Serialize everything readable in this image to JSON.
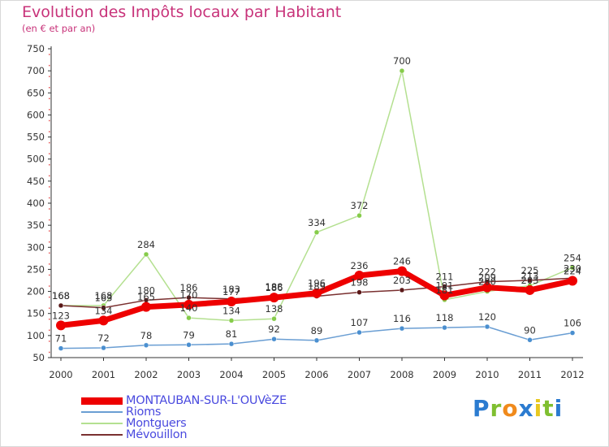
{
  "header": {
    "title": "Evolution des Impôts locaux par Habitant",
    "subtitle": "(en € et par an)"
  },
  "brand": {
    "letters": [
      "P",
      "r",
      "o",
      "x",
      "i",
      "t",
      "i"
    ],
    "colors": [
      "#2b7bd0",
      "#7fbf30",
      "#f08a1c",
      "#2b7bd0",
      "#e8c820",
      "#7fbf30",
      "#2b7bd0"
    ]
  },
  "chart_data": {
    "type": "line",
    "title": "Evolution des Impôts locaux par Habitant",
    "subtitle": "(en € et par an)",
    "xlabel": "",
    "ylabel": "",
    "categories": [
      "2000",
      "2001",
      "2002",
      "2003",
      "2004",
      "2005",
      "2006",
      "2007",
      "2008",
      "2009",
      "2010",
      "2011",
      "2012"
    ],
    "ylim": [
      50,
      750
    ],
    "yticks": [
      50,
      100,
      150,
      200,
      250,
      300,
      350,
      400,
      450,
      500,
      550,
      600,
      650,
      700,
      750
    ],
    "grid": false,
    "legend_position": "bottom-left",
    "series": [
      {
        "name": "Rioms",
        "color": "#6a9ed3",
        "marker": "#4a8fd0",
        "width": 1.5,
        "values": [
          71,
          72,
          78,
          79,
          81,
          92,
          89,
          107,
          116,
          118,
          120,
          90,
          106
        ]
      },
      {
        "name": "Montguers",
        "color": "#b4e090",
        "marker": "#86cc4a",
        "width": 1.5,
        "values": [
          168,
          168,
          284,
          140,
          134,
          138,
          334,
          372,
          700,
          181,
          200,
          213,
          254
        ]
      },
      {
        "name": "Mévouillon",
        "color": "#7a3030",
        "marker": "#5a1818",
        "width": 1.5,
        "values": [
          168,
          163,
          180,
          186,
          183,
          188,
          189,
          198,
          203,
          211,
          222,
          225,
          230
        ]
      },
      {
        "name": "MONTAUBAN-SUR-L'OUVèZE",
        "color": "#ee0000",
        "marker": "#ee0000",
        "width": 7,
        "values": [
          123,
          134,
          165,
          170,
          177,
          186,
          196,
          236,
          246,
          191,
          209,
          203,
          224
        ]
      }
    ],
    "legend": [
      "MONTAUBAN-SUR-L'OUVèZE",
      "Rioms",
      "Montguers",
      "Mévouillon"
    ]
  }
}
